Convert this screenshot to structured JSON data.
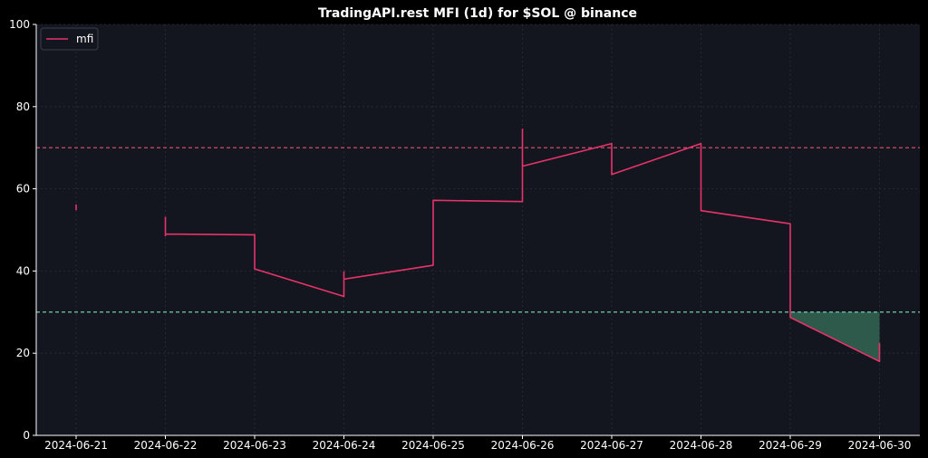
{
  "chart_data": {
    "type": "line",
    "title": "TradingAPI.rest MFI (1d) for $SOL @ binance",
    "xlabel": "",
    "ylabel": "",
    "ylim": [
      0,
      100
    ],
    "y_ticks": [
      0,
      20,
      40,
      60,
      80,
      100
    ],
    "x_ticks": [
      "2024-06-21",
      "2024-06-22",
      "2024-06-23",
      "2024-06-24",
      "2024-06-25",
      "2024-06-26",
      "2024-06-27",
      "2024-06-28",
      "2024-06-29",
      "2024-06-30"
    ],
    "grid": true,
    "legend": {
      "position": "top-left",
      "entries": [
        "mfi"
      ]
    },
    "thresholds": [
      {
        "value": 70,
        "color": "#e0556e"
      },
      {
        "value": 30,
        "color": "#7fe0c0"
      }
    ],
    "series": [
      {
        "name": "mfi",
        "color": "#e8336a",
        "segments": [
          [
            [
              "2024-06-21",
              56.2
            ],
            [
              "2024-06-21",
              54.8
            ]
          ],
          [
            [
              "2024-06-22",
              53.2
            ],
            [
              "2024-06-22",
              48.6
            ],
            [
              "2024-06-22",
              49.0
            ],
            [
              "2024-06-23",
              48.8
            ],
            [
              "2024-06-23",
              40.5
            ],
            [
              "2024-06-24",
              33.8
            ],
            [
              "2024-06-24",
              39.8
            ],
            [
              "2024-06-24",
              38.0
            ],
            [
              "2024-06-25",
              41.4
            ],
            [
              "2024-06-25",
              57.2
            ],
            [
              "2024-06-26",
              56.9
            ],
            [
              "2024-06-26",
              74.5
            ],
            [
              "2024-06-26",
              65.5
            ],
            [
              "2024-06-27",
              71.0
            ],
            [
              "2024-06-27",
              63.5
            ],
            [
              "2024-06-28",
              71.0
            ],
            [
              "2024-06-28",
              54.7
            ],
            [
              "2024-06-29",
              51.5
            ],
            [
              "2024-06-29",
              28.7
            ],
            [
              "2024-06-30",
              18.0
            ],
            [
              "2024-06-30",
              22.5
            ]
          ]
        ]
      }
    ],
    "fill_below_30": {
      "color": "#2d5a4b",
      "from": "2024-06-29",
      "to": "2024-06-30"
    },
    "colors": {
      "background": "#000000",
      "plot_background": "#13161f",
      "grid": "#2a2f3a",
      "axis": "#ffffff"
    }
  }
}
